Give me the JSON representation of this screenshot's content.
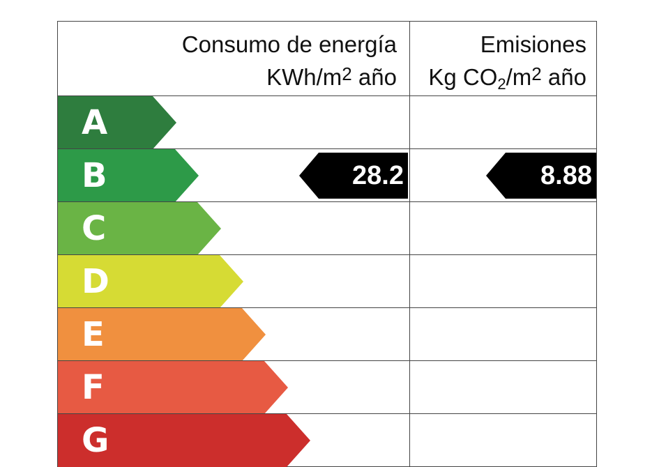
{
  "header": {
    "energy_line1": "Consumo de energía",
    "energy_line2": "KWh/m",
    "energy_sup": "2",
    "energy_tail": " año",
    "emis_line1": "Emisiones",
    "emis_pre": "Kg CO",
    "emis_sub": "2",
    "emis_mid": "/m",
    "emis_sup": "2",
    "emis_tail": " año"
  },
  "bands": [
    {
      "letter": "A",
      "color": "#2e7d3e"
    },
    {
      "letter": "B",
      "color": "#2d9a48"
    },
    {
      "letter": "C",
      "color": "#6ab445"
    },
    {
      "letter": "D",
      "color": "#d6db34"
    },
    {
      "letter": "E",
      "color": "#f0903f"
    },
    {
      "letter": "F",
      "color": "#e75a43"
    },
    {
      "letter": "G",
      "color": "#cc2e2c"
    }
  ],
  "rating": {
    "band": "B",
    "energy_value": "28.2",
    "emissions_value": "8.88"
  }
}
